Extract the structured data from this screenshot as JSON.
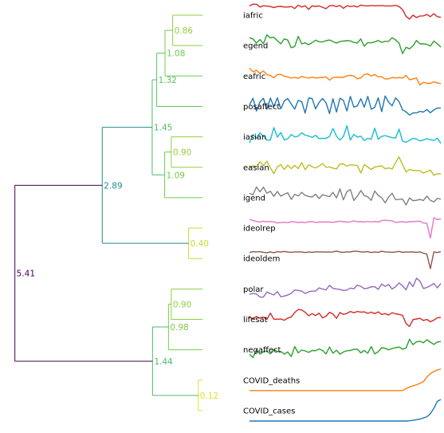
{
  "chart_data": [
    {
      "type": "dendrogram",
      "leaves": [
        "iafric",
        "egend",
        "eafric",
        "posaffect",
        "iasian",
        "easian",
        "igend",
        "ideolrep",
        "ideoldem",
        "polar",
        "lifesat",
        "negaffect",
        "COVID_deaths",
        "COVID_cases"
      ],
      "merges": [
        {
          "height": 0.86,
          "members": [
            "iafric",
            "egend"
          ],
          "color": "#8fce3f"
        },
        {
          "height": 1.08,
          "members": [
            "iafric",
            "egend",
            "eafric"
          ],
          "color": "#6ecb4f"
        },
        {
          "height": 1.32,
          "members": [
            "iafric",
            "egend",
            "eafric",
            "posaffect"
          ],
          "color": "#5cc45f"
        },
        {
          "height": 0.9,
          "members": [
            "iasian",
            "easian"
          ],
          "color": "#8fce3f"
        },
        {
          "height": 1.09,
          "members": [
            "iasian",
            "easian",
            "igend"
          ],
          "color": "#6ecb4f"
        },
        {
          "height": 1.45,
          "members": [
            "iafric",
            "egend",
            "eafric",
            "posaffect",
            "iasian",
            "easian",
            "igend"
          ],
          "color": "#4cbb68"
        },
        {
          "height": 0.4,
          "members": [
            "ideolrep",
            "ideoldem"
          ],
          "color": "#c8dc2c"
        },
        {
          "height": 2.89,
          "members": [
            "iafric",
            "egend",
            "eafric",
            "posaffect",
            "iasian",
            "easian",
            "igend",
            "ideolrep",
            "ideoldem"
          ],
          "color": "#218e8a"
        },
        {
          "height": 0.9,
          "members": [
            "polar",
            "lifesat"
          ],
          "color": "#8fce3f"
        },
        {
          "height": 0.98,
          "members": [
            "polar",
            "lifesat",
            "negaffect"
          ],
          "color": "#79cc4a"
        },
        {
          "height": 0.12,
          "members": [
            "COVID_deaths",
            "COVID_cases"
          ],
          "color": "#e5dd2a"
        },
        {
          "height": 1.44,
          "members": [
            "polar",
            "lifesat",
            "negaffect",
            "COVID_deaths",
            "COVID_cases"
          ],
          "color": "#4cbb68"
        },
        {
          "height": 5.41,
          "members": [
            "iafric",
            "egend",
            "eafric",
            "posaffect",
            "iasian",
            "easian",
            "igend",
            "ideolrep",
            "ideoldem",
            "polar",
            "lifesat",
            "negaffect",
            "COVID_deaths",
            "COVID_cases"
          ],
          "color": "#440154"
        }
      ]
    },
    {
      "type": "line",
      "series": [
        {
          "name": "iafric",
          "color": "#d62728",
          "values": [
            0.91,
            0.99,
            0.99,
            0.86,
            0.92,
            0.9,
            0.88,
            0.83,
            0.88,
            0.89,
            0.86,
            0.86,
            0.88,
            0.79,
            0.94,
            0.86,
            0.92,
            0.75,
            0.91,
            0.89,
            0.91,
            0.85,
            0.78,
            0.92,
            0.93,
            0.88,
            0.93,
            0.8,
            0.92,
            0.88,
            0.91,
            0.86,
            0.95,
            0.92,
            0.91,
            0.93,
            0.92,
            0.92,
            0.93,
            0.91,
            0.91,
            0.91,
            0.94,
            0.88,
            0.74,
            0.43,
            0.3,
            0.48,
            0.37,
            0.44,
            0.45,
            0.51,
            0.41,
            0.55,
            0.41,
            0.38
          ]
        },
        {
          "name": "egend",
          "color": "#2ca02c",
          "values": [
            0.85,
            0.79,
            0.6,
            0.76,
            0.57,
            0.98,
            0.84,
            0.87,
            0.71,
            0.56,
            0.79,
            0.74,
            0.38,
            0.44,
            0.91,
            0.56,
            0.61,
            0.52,
            0.62,
            0.73,
            0.66,
            0.65,
            0.71,
            0.74,
            0.67,
            0.6,
            0.67,
            0.69,
            0.71,
            0.7,
            0.63,
            0.6,
            0.79,
            0.45,
            0.62,
            0.61,
            0.65,
            0.72,
            0.63,
            0.68,
            0.68,
            0.85,
            0.74,
            0.6,
            0.11,
            0.4,
            0.33,
            0.47,
            0.72,
            0.56,
            0.56,
            0.54,
            0.46,
            0.69,
            0.57,
            0.41
          ]
        },
        {
          "name": "eafric",
          "color": "#ff7f0e",
          "values": [
            0.85,
            0.67,
            0.75,
            0.6,
            0.71,
            0.55,
            0.5,
            0.4,
            0.55,
            0.55,
            0.47,
            0.44,
            0.38,
            0.42,
            0.37,
            0.46,
            0.42,
            0.38,
            0.43,
            0.39,
            0.4,
            0.42,
            0.44,
            0.29,
            0.41,
            0.43,
            0.42,
            0.42,
            0.49,
            0.51,
            0.48,
            0.35,
            0.39,
            0.55,
            0.58,
            0.48,
            0.55,
            0.44,
            0.45,
            0.34,
            0.35,
            0.41,
            0.39,
            0.41,
            0.38,
            0.51,
            0.31,
            0.34,
            0.39,
            0.06,
            0.19,
            0.14,
            0.14,
            0.21,
            0.16,
            0.13
          ]
        },
        {
          "name": "posaffect",
          "color": "#1f77b4",
          "values": [
            0.55,
            0.86,
            0.27,
            0.69,
            0.86,
            0.35,
            0.87,
            0.47,
            0.88,
            0.37,
            0.73,
            0.85,
            0.59,
            0.36,
            0.76,
            0.7,
            0.17,
            0.87,
            0.85,
            0.37,
            0.67,
            0.85,
            0.65,
            0.15,
            0.84,
            0.22,
            0.86,
            0.76,
            0.27,
            0.95,
            0.45,
            0.51,
            0.84,
            0.45,
            0.95,
            0.35,
            0.44,
            0.88,
            0.24,
            0.97,
            0.68,
            0.51,
            0.88,
            0.7,
            0.32,
            0.23,
            0.08,
            0.18,
            0.18,
            0.25,
            0.22,
            0.34,
            0.19,
            0.32,
            0.41,
            0.4
          ]
        },
        {
          "name": "iasian",
          "color": "#17becf",
          "values": [
            0.2,
            0.58,
            0.42,
            0.66,
            0.52,
            0.33,
            0.33,
            0.91,
            0.47,
            0.68,
            0.34,
            0.39,
            0.59,
            0.48,
            0.51,
            0.67,
            0.56,
            0.52,
            0.46,
            0.55,
            0.4,
            0.41,
            0.41,
            0.5,
            0.87,
            0.51,
            0.33,
            0.5,
            1.0,
            0.33,
            0.6,
            0.47,
            0.51,
            0.31,
            0.41,
            0.37,
            0.88,
            0.37,
            0.5,
            0.54,
            0.49,
            0.44,
            0.43,
            0.84,
            0.28,
            0.23,
            0.32,
            0.41,
            0.38,
            0.29,
            0.34,
            0.39,
            0.36,
            0.31,
            0.42,
            0.18
          ]
        },
        {
          "name": "easian",
          "color": "#bcbd22",
          "values": [
            0.46,
            0.55,
            0.5,
            0.74,
            0.56,
            0.76,
            0.45,
            0.19,
            0.5,
            0.61,
            0.38,
            0.58,
            0.42,
            0.57,
            0.42,
            0.7,
            0.37,
            0.59,
            0.51,
            0.45,
            0.54,
            0.65,
            0.48,
            0.5,
            0.44,
            0.4,
            0.63,
            0.64,
            0.53,
            0.6,
            0.58,
            0.56,
            0.22,
            0.6,
            0.49,
            0.38,
            0.49,
            0.52,
            0.55,
            0.41,
            0.45,
            0.4,
            0.7,
            0.96,
            0.6,
            0.26,
            0.38,
            0.33,
            0.33,
            0.32,
            0.21,
            0.28,
            0.35,
            0.11,
            0.18,
            0.17
          ]
        },
        {
          "name": "igend",
          "color": "#7f7f7f",
          "values": [
            0.68,
            0.62,
            0.98,
            0.75,
            0.97,
            0.69,
            0.78,
            0.54,
            0.77,
            0.55,
            0.64,
            0.71,
            0.4,
            0.64,
            0.56,
            0.73,
            0.59,
            0.54,
            0.51,
            0.64,
            0.44,
            0.62,
            0.57,
            0.53,
            0.73,
            0.47,
            0.89,
            0.38,
            0.76,
            0.86,
            0.35,
            0.55,
            0.81,
            0.58,
            0.52,
            0.36,
            0.79,
            0.59,
            0.48,
            0.24,
            0.51,
            0.69,
            0.39,
            0.4,
            0.42,
            0.14,
            0.47,
            0.34,
            0.36,
            0.4,
            0.35,
            0.55,
            0.36,
            0.28,
            0.45,
            0.41
          ]
        },
        {
          "name": "ideolrep",
          "color": "#e377c2",
          "values": [
            0.89,
            0.84,
            0.79,
            0.77,
            0.8,
            0.78,
            0.79,
            0.77,
            0.72,
            0.74,
            0.75,
            0.73,
            0.78,
            0.77,
            0.74,
            0.76,
            0.73,
            0.78,
            0.78,
            0.75,
            0.76,
            0.76,
            0.77,
            0.76,
            0.75,
            0.78,
            0.8,
            0.78,
            0.76,
            0.77,
            0.82,
            0.78,
            0.78,
            0.77,
            0.79,
            0.77,
            0.79,
            0.76,
            0.83,
            0.85,
            0.83,
            0.82,
            0.74,
            0.77,
            0.78,
            0.75,
            0.78,
            0.78,
            0.8,
            0.8,
            0.72,
            0.71,
            0.02,
            0.96,
            0.88,
            0.91
          ]
        },
        {
          "name": "ideoldem",
          "color": "#8c564b",
          "values": [
            0.76,
            0.8,
            0.79,
            0.8,
            0.77,
            0.75,
            0.79,
            0.75,
            0.8,
            0.78,
            0.81,
            0.78,
            0.77,
            0.79,
            0.79,
            0.79,
            0.76,
            0.79,
            0.77,
            0.79,
            0.79,
            0.79,
            0.78,
            0.78,
            0.79,
            0.83,
            0.78,
            0.77,
            0.79,
            0.79,
            0.82,
            0.82,
            0.79,
            0.79,
            0.8,
            0.76,
            0.79,
            0.77,
            0.82,
            0.79,
            0.78,
            0.77,
            0.79,
            0.81,
            0.77,
            0.78,
            0.78,
            0.79,
            0.77,
            0.79,
            0.73,
            0.68,
            0.01,
            0.79,
            0.76,
            0.8
          ]
        },
        {
          "name": "polar",
          "color": "#9467bd",
          "values": [
            0.23,
            0.27,
            0.25,
            0.1,
            0.11,
            0.34,
            0.27,
            0.2,
            0.36,
            0.12,
            0.15,
            0.2,
            0.28,
            0.43,
            0.41,
            0.38,
            0.27,
            0.35,
            0.38,
            0.38,
            0.53,
            0.48,
            0.44,
            0.65,
            0.51,
            0.48,
            0.46,
            0.41,
            0.43,
            0.52,
            0.49,
            0.66,
            0.6,
            0.49,
            0.52,
            0.58,
            0.59,
            0.46,
            0.71,
            0.6,
            0.69,
            0.48,
            0.58,
            0.76,
            0.63,
            0.44,
            0.81,
            0.59,
            0.98,
            0.85,
            0.5,
            0.55,
            0.63,
            0.74,
            0.53,
            0.73
          ]
        },
        {
          "name": "lifesat",
          "color": "#d62728",
          "values": [
            0.58,
            0.52,
            0.61,
            0.54,
            0.59,
            0.48,
            0.77,
            0.49,
            0.49,
            0.5,
            0.44,
            0.54,
            0.59,
            0.8,
            0.94,
            0.92,
            0.81,
            0.65,
            0.75,
            0.66,
            0.77,
            0.55,
            0.63,
            0.81,
            0.73,
            0.53,
            0.8,
            0.71,
            0.76,
            0.85,
            0.79,
            0.85,
            0.82,
            0.83,
            0.76,
            0.82,
            0.75,
            0.83,
            0.71,
            0.75,
            0.68,
            0.79,
            0.74,
            0.71,
            0.67,
            0.29,
            0.15,
            0.47,
            0.5,
            0.53,
            0.43,
            0.48,
            0.37,
            0.45,
            0.56,
            0.57
          ]
        },
        {
          "name": "negaffect",
          "color": "#2ca02c",
          "values": [
            0.27,
            0.12,
            0.48,
            0.28,
            0.39,
            0.43,
            0.29,
            0.49,
            0.4,
            0.4,
            0.28,
            0.38,
            0.17,
            0.63,
            0.34,
            0.47,
            0.43,
            0.36,
            0.45,
            0.44,
            0.52,
            0.45,
            0.29,
            0.61,
            0.32,
            0.46,
            0.28,
            0.38,
            0.44,
            0.45,
            0.5,
            0.51,
            0.34,
            0.45,
            0.32,
            0.63,
            0.29,
            0.39,
            0.58,
            0.55,
            0.48,
            0.54,
            0.58,
            0.61,
            0.51,
            0.56,
            0.97,
            0.72,
            0.85,
            0.88,
            0.81,
            0.95,
            0.84,
            0.73,
            0.84,
            0.87
          ]
        },
        {
          "name": "COVID_deaths",
          "color": "#ff7f0e",
          "values": [
            0.0,
            0.0,
            0.0,
            0.0,
            0.0,
            0.0,
            0.0,
            0.0,
            0.0,
            0.0,
            0.0,
            0.0,
            0.0,
            0.0,
            0.0,
            0.0,
            0.0,
            0.0,
            0.0,
            0.0,
            0.0,
            0.0,
            0.0,
            0.0,
            0.0,
            0.0,
            0.0,
            0.0,
            0.0,
            0.0,
            0.0,
            0.0,
            0.0,
            0.0,
            0.0,
            0.0,
            0.0,
            0.0,
            0.0,
            0.0,
            0.0,
            0.0,
            0.0,
            0.0,
            0.0,
            0.09,
            0.17,
            0.22,
            0.27,
            0.34,
            0.41,
            0.63,
            0.79,
            0.89,
            0.96,
            1.0
          ]
        },
        {
          "name": "COVID_cases",
          "color": "#1f77b4",
          "values": [
            0.0,
            0.0,
            0.0,
            0.0,
            0.0,
            0.0,
            0.0,
            0.0,
            0.0,
            0.0,
            0.0,
            0.0,
            0.0,
            0.0,
            0.0,
            0.0,
            0.0,
            0.0,
            0.0,
            0.0,
            0.0,
            0.0,
            0.0,
            0.0,
            0.0,
            0.0,
            0.0,
            0.0,
            0.0,
            0.0,
            0.0,
            0.0,
            0.0,
            0.0,
            0.0,
            0.0,
            0.0,
            0.0,
            0.0,
            0.0,
            0.0,
            0.0,
            0.0,
            0.0,
            0.0,
            0.0,
            0.01,
            0.03,
            0.06,
            0.09,
            0.14,
            0.2,
            0.34,
            0.59,
            0.91,
            1.0
          ]
        }
      ]
    }
  ]
}
